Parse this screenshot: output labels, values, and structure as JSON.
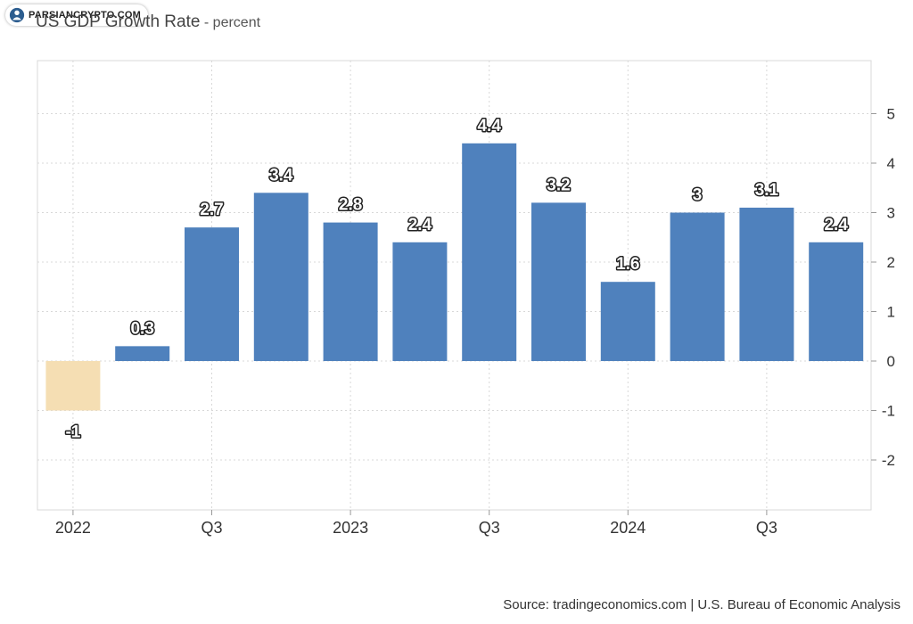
{
  "header": {
    "title": "US GDP Growth Rate",
    "subtitle": "- percent",
    "watermark": "PARSIANCRYPTO.COM"
  },
  "footer": {
    "source": "Source: tradingeconomics.com | U.S. Bureau of Economic Analysis"
  },
  "colors": {
    "positive_bar": "#4f81bd",
    "negative_bar": "#f5deb3",
    "grid": "#d8d8d8"
  },
  "chart_data": {
    "type": "bar",
    "title": "US GDP Growth Rate",
    "subtitle": "- percent",
    "categories": [
      "2022 Q1",
      "2022 Q2",
      "2022 Q3",
      "2022 Q4",
      "2023 Q1",
      "2023 Q2",
      "2023 Q3",
      "2023 Q4",
      "2024 Q1",
      "2024 Q2",
      "2024 Q3",
      "2024 Q4"
    ],
    "values": [
      -1,
      0.3,
      2.7,
      3.4,
      2.8,
      2.4,
      4.4,
      3.2,
      1.6,
      3,
      3.1,
      2.4
    ],
    "x_tick_labels": [
      {
        "index": 0,
        "label": "2022"
      },
      {
        "index": 2,
        "label": "Q3"
      },
      {
        "index": 4,
        "label": "2023"
      },
      {
        "index": 6,
        "label": "Q3"
      },
      {
        "index": 8,
        "label": "2024"
      },
      {
        "index": 10,
        "label": "Q3"
      }
    ],
    "y_ticks": [
      5,
      4,
      3,
      2,
      1,
      0,
      -1,
      -2
    ],
    "ylim": [
      -3,
      6
    ],
    "y_axis_side": "right",
    "grid": true,
    "data_labels": true,
    "xlabel": "",
    "ylabel": ""
  }
}
